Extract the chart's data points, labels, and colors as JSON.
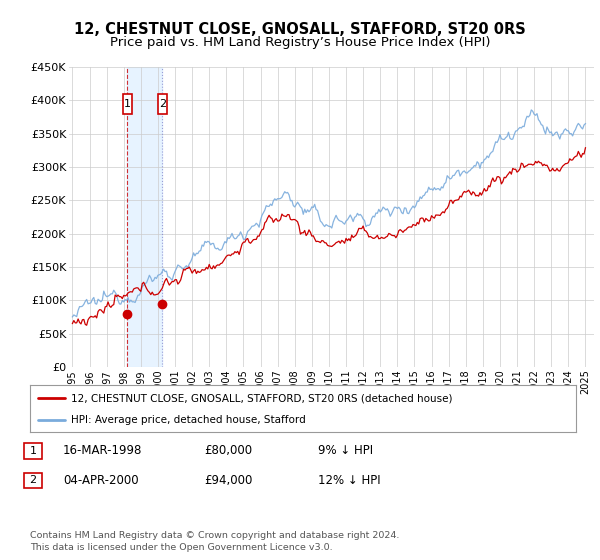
{
  "title": "12, CHESTNUT CLOSE, GNOSALL, STAFFORD, ST20 0RS",
  "subtitle": "Price paid vs. HM Land Registry’s House Price Index (HPI)",
  "title_fontsize": 10.5,
  "subtitle_fontsize": 9.5,
  "ylim": [
    0,
    450000
  ],
  "yticks": [
    0,
    50000,
    100000,
    150000,
    200000,
    250000,
    300000,
    350000,
    400000,
    450000
  ],
  "ytick_labels": [
    "£0",
    "£50K",
    "£100K",
    "£150K",
    "£200K",
    "£250K",
    "£300K",
    "£350K",
    "£400K",
    "£450K"
  ],
  "xlim_start": 1994.8,
  "xlim_end": 2025.5,
  "xtick_years": [
    1995,
    1996,
    1997,
    1998,
    1999,
    2000,
    2001,
    2002,
    2003,
    2004,
    2005,
    2006,
    2007,
    2008,
    2009,
    2010,
    2011,
    2012,
    2013,
    2014,
    2015,
    2016,
    2017,
    2018,
    2019,
    2020,
    2021,
    2022,
    2023,
    2024,
    2025
  ],
  "red_line_color": "#cc0000",
  "blue_line_color": "#7aabdc",
  "transaction1_x": 1998.21,
  "transaction1_y": 80000,
  "transaction2_x": 2000.26,
  "transaction2_y": 94000,
  "legend_line1": "12, CHESTNUT CLOSE, GNOSALL, STAFFORD, ST20 0RS (detached house)",
  "legend_line2": "HPI: Average price, detached house, Stafford",
  "table_rows": [
    {
      "num": "1",
      "date": "16-MAR-1998",
      "price": "£80,000",
      "change": "9% ↓ HPI"
    },
    {
      "num": "2",
      "date": "04-APR-2000",
      "price": "£94,000",
      "change": "12% ↓ HPI"
    }
  ],
  "footer": "Contains HM Land Registry data © Crown copyright and database right 2024.\nThis data is licensed under the Open Government Licence v3.0.",
  "bg_color": "#ffffff",
  "grid_color": "#cccccc",
  "hpi_band_color": "#ddeeff"
}
